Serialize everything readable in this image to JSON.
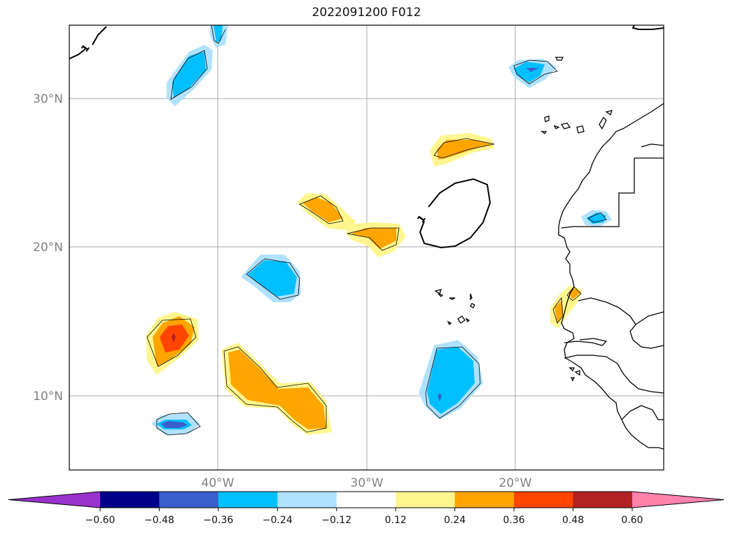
{
  "title": "2022091200 F012",
  "map": {
    "lat_ticks": [
      {
        "value": 30,
        "label": "30°N"
      },
      {
        "value": 20,
        "label": "20°N"
      },
      {
        "value": 10,
        "label": "10°N"
      }
    ],
    "lon_ticks": [
      {
        "value": -40,
        "label": "40°W"
      },
      {
        "value": -30,
        "label": "30°W"
      },
      {
        "value": -20,
        "label": "20°W"
      }
    ],
    "contour_label": "1"
  },
  "colorbar": {
    "levels": [
      "−0.60",
      "−0.48",
      "−0.36",
      "−0.24",
      "−0.12",
      "0.12",
      "0.24",
      "0.36",
      "0.48",
      "0.60"
    ],
    "colors": [
      "#9932cc",
      "#00008b",
      "#3a5fcd",
      "#00bfff",
      "#b0e2ff",
      "#ffffff",
      "#fff68f",
      "#ffa500",
      "#ff4500",
      "#b22222",
      "#ff82ab"
    ]
  }
}
